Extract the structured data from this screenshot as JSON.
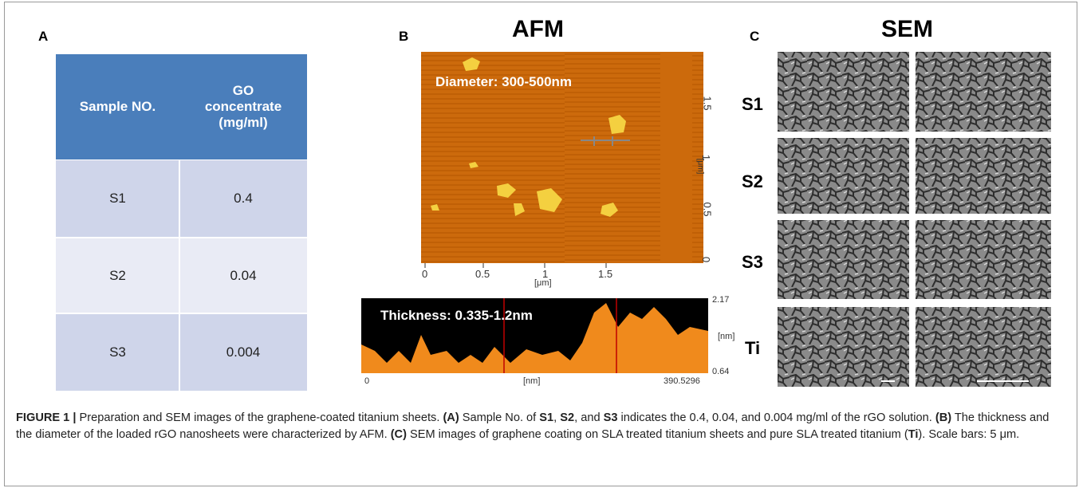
{
  "panel_a": {
    "label": "A",
    "table": {
      "header": [
        "Sample NO.",
        "GO concentrate (mg/ml)"
      ],
      "rows": [
        [
          "S1",
          "0.4"
        ],
        [
          "S2",
          "0.04"
        ],
        [
          "S3",
          "0.004"
        ]
      ]
    }
  },
  "panel_b": {
    "label": "B",
    "title": "AFM",
    "image": {
      "annotation": "Diameter: 300-500nm",
      "x_ticks": [
        "0",
        "0.5",
        "1",
        "1.5"
      ],
      "x_unit": "[μm]",
      "y_ticks": [
        "0",
        "0.5",
        "1",
        "1.5"
      ],
      "y_unit": "[μm]"
    },
    "profile": {
      "annotation": "Thickness: 0.335-1.2nm",
      "y_top": "2.17",
      "y_bottom": "0.64",
      "y_unit": "[nm]",
      "x_left": "0",
      "x_unit": "[nm]",
      "x_right": "390.5296"
    }
  },
  "panel_c": {
    "label": "C",
    "title": "SEM",
    "rows": [
      "S1",
      "S2",
      "S3",
      "Ti"
    ]
  },
  "caption": {
    "runs": [
      "FIGURE 1 |",
      " Preparation and SEM images of the graphene-coated titanium sheets. ",
      "(A)",
      " Sample No. of ",
      "S1",
      ", ",
      "S2",
      ", and ",
      "S3",
      " indicates the 0.4, 0.04, and 0.004 mg/ml of the rGO solution. ",
      "(B)",
      " The thickness and the diameter of the loaded rGO nanosheets were characterized by AFM. ",
      "(C)",
      " SEM images of graphene coating on SLA treated titanium sheets and pure SLA treated titanium (",
      "Ti",
      "). Scale bars: 5 μm."
    ]
  }
}
